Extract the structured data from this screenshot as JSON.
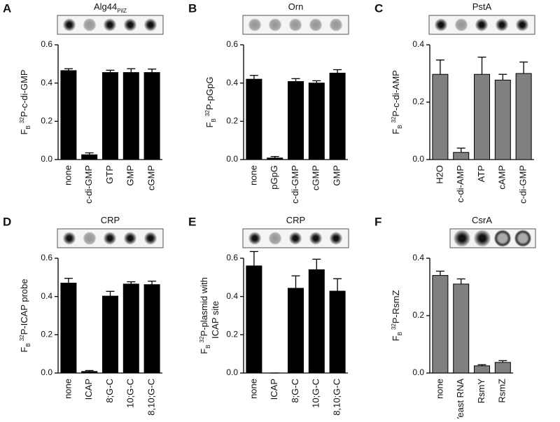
{
  "chart_data": [
    {
      "panel": "A",
      "type": "bar",
      "title": "Alg44",
      "title_sub": "PilZ",
      "ylabel": {
        "base": "F",
        "sub": "B",
        "sup": "32",
        "lines": [
          "P-c-di-GMP"
        ]
      },
      "categories": [
        "none",
        "c-di-GMP",
        "GTP",
        "GMP",
        "cGMP"
      ],
      "values": [
        0.465,
        0.025,
        0.455,
        0.455,
        0.455
      ],
      "errors": [
        0.01,
        0.01,
        0.012,
        0.02,
        0.018
      ],
      "color": "#000000",
      "ylim": [
        0,
        0.6
      ],
      "yticks": [
        {
          "value": 0,
          "label": "0.0"
        },
        0.2,
        0.4,
        0.6
      ]
    },
    {
      "panel": "B",
      "type": "bar",
      "title": "Orn",
      "ylabel": {
        "base": "F",
        "sub": "B",
        "sup": "32",
        "lines": [
          "P-pGpG"
        ]
      },
      "categories": [
        "none",
        "pGpG",
        "c-di-GMP",
        "cGMP",
        "GMP"
      ],
      "values": [
        0.42,
        0.008,
        0.408,
        0.4,
        0.452
      ],
      "errors": [
        0.02,
        0.008,
        0.015,
        0.012,
        0.018
      ],
      "color": "#000000",
      "ylim": [
        0,
        0.6
      ],
      "yticks": [
        {
          "value": 0,
          "label": "0.0"
        },
        0.2,
        0.4,
        0.6
      ]
    },
    {
      "panel": "C",
      "type": "bar",
      "title": "PstA",
      "ylabel": {
        "base": "F",
        "sub": "B",
        "sup": "32",
        "lines": [
          "P-c-di-AMP"
        ]
      },
      "categories": [
        "H2O",
        "c-di-AMP",
        "ATP",
        "cAMP",
        "c-di-GMP"
      ],
      "values": [
        0.297,
        0.025,
        0.297,
        0.277,
        0.3
      ],
      "errors": [
        0.05,
        0.015,
        0.06,
        0.02,
        0.04
      ],
      "color": "#808080",
      "ylim": [
        0,
        0.4
      ],
      "yticks": [
        {
          "value": 0,
          "label": "0.0"
        },
        0.2,
        0.4
      ]
    },
    {
      "panel": "D",
      "type": "bar",
      "title": "CRP",
      "ylabel": {
        "base": "F",
        "sub": "B",
        "sup": "32",
        "lines": [
          "P-ICAP probe"
        ]
      },
      "categories": [
        "none",
        "ICAP",
        "8;G-C",
        "10;G-C",
        "8,10;G-C"
      ],
      "values": [
        0.47,
        0.008,
        0.402,
        0.465,
        0.462
      ],
      "errors": [
        0.025,
        0.005,
        0.025,
        0.012,
        0.018
      ],
      "color": "#000000",
      "ylim": [
        0,
        0.6
      ],
      "yticks": [
        {
          "value": 0,
          "label": "0.0"
        },
        0.2,
        0.4,
        0.6
      ]
    },
    {
      "panel": "E",
      "type": "bar",
      "title": "CRP",
      "ylabel": {
        "base": "F",
        "sub": "B",
        "sup": "32",
        "lines": [
          "P-plasmid with",
          "ICAP site"
        ]
      },
      "categories": [
        "none",
        "ICAP",
        "8;G-C",
        "10;G-C",
        "8,10;G-C"
      ],
      "values": [
        0.56,
        0,
        0.443,
        0.54,
        0.428
      ],
      "errors": [
        0.075,
        0,
        0.065,
        0.055,
        0.065
      ],
      "color": "#000000",
      "ylim": [
        0,
        0.6
      ],
      "yticks": [
        {
          "value": 0,
          "label": "0.0"
        },
        0.2,
        0.4,
        0.6
      ]
    },
    {
      "panel": "F",
      "type": "bar",
      "title": "CsrA",
      "ylabel": {
        "base": "F",
        "sub": "B",
        "sup": "32",
        "lines": [
          "P-RsmZ"
        ]
      },
      "categories": [
        "none",
        "Yeast RNA",
        "RsmY",
        "RsmZ"
      ],
      "values": [
        0.34,
        0.31,
        0.025,
        0.037
      ],
      "errors": [
        0.015,
        0.018,
        0.004,
        0.006
      ],
      "color": "#808080",
      "ylim": [
        0,
        0.4
      ],
      "yticks": [
        {
          "value": 0,
          "label": "0.0"
        },
        0.2,
        0.4
      ]
    }
  ]
}
